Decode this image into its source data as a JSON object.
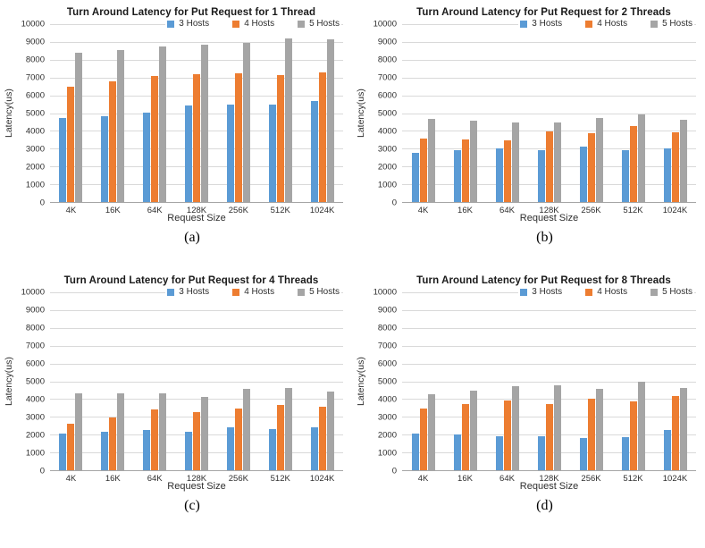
{
  "colors": {
    "series_blue": "#5B9BD5",
    "series_orange": "#ED7D31",
    "series_gray": "#A5A5A5",
    "gridline": "#D9D9D9",
    "axis_line": "#A6A6A6",
    "text": "#2E2E2E",
    "title_text": "#1A1A1A",
    "background": "#FFFFFF"
  },
  "axis": {
    "y_ticks": [
      10000,
      9000,
      8000,
      7000,
      6000,
      5000,
      4000,
      3000,
      2000,
      1000,
      0
    ],
    "y_max": 10000
  },
  "legend_labels": [
    "3 Hosts",
    "4 Hosts",
    "5 Hosts"
  ],
  "chart_data": [
    {
      "type": "bar",
      "title": "Turn Around Latency for Put Request for 1 Thread",
      "caption": "(a)",
      "xlabel": "Request Size",
      "ylabel": "Latency(us)",
      "ylim": [
        0,
        10000
      ],
      "grid": true,
      "legend_position": "top-right-inside",
      "categories": [
        "4K",
        "16K",
        "64K",
        "128K",
        "256K",
        "512K",
        "1024K"
      ],
      "series": [
        {
          "name": "3 Hosts",
          "color": "#5B9BD5",
          "values": [
            4700,
            4850,
            5050,
            5450,
            5500,
            5500,
            5700
          ]
        },
        {
          "name": "4 Hosts",
          "color": "#ED7D31",
          "values": [
            6500,
            6800,
            7100,
            7200,
            7250,
            7150,
            7300
          ]
        },
        {
          "name": "5 Hosts",
          "color": "#A5A5A5",
          "values": [
            8400,
            8550,
            8750,
            8850,
            8950,
            9200,
            9150
          ]
        }
      ]
    },
    {
      "type": "bar",
      "title": "Turn Around Latency for Put Request for 2 Threads",
      "caption": "(b)",
      "xlabel": "Request Size",
      "ylabel": "Latency(us)",
      "ylim": [
        0,
        10000
      ],
      "grid": true,
      "legend_position": "top-right-inside",
      "categories": [
        "4K",
        "16K",
        "64K",
        "128K",
        "256K",
        "512K",
        "1024K"
      ],
      "series": [
        {
          "name": "3 Hosts",
          "color": "#5B9BD5",
          "values": [
            2750,
            2900,
            3000,
            2900,
            3100,
            2900,
            3000
          ]
        },
        {
          "name": "4 Hosts",
          "color": "#ED7D31",
          "values": [
            3550,
            3500,
            3480,
            3950,
            3880,
            4250,
            3900
          ]
        },
        {
          "name": "5 Hosts",
          "color": "#A5A5A5",
          "values": [
            4650,
            4550,
            4450,
            4470,
            4700,
            4950,
            4620
          ]
        }
      ]
    },
    {
      "type": "bar",
      "title": "Turn Around Latency for Put Request for 4 Threads",
      "caption": "(c)",
      "xlabel": "Request Size",
      "ylabel": "Latency(us)",
      "ylim": [
        0,
        10000
      ],
      "grid": true,
      "legend_position": "top-right-inside",
      "categories": [
        "4K",
        "16K",
        "64K",
        "128K",
        "256K",
        "512K",
        "1024K"
      ],
      "series": [
        {
          "name": "3 Hosts",
          "color": "#5B9BD5",
          "values": [
            2080,
            2170,
            2270,
            2170,
            2420,
            2320,
            2430
          ]
        },
        {
          "name": "4 Hosts",
          "color": "#ED7D31",
          "values": [
            2600,
            2980,
            3400,
            3250,
            3480,
            3650,
            3550
          ]
        },
        {
          "name": "5 Hosts",
          "color": "#A5A5A5",
          "values": [
            4300,
            4320,
            4320,
            4120,
            4570,
            4600,
            4430
          ]
        }
      ]
    },
    {
      "type": "bar",
      "title": "Turn Around Latency for Put Request for 8 Threads",
      "caption": "(d)",
      "xlabel": "Request Size",
      "ylabel": "Latency(us)",
      "ylim": [
        0,
        10000
      ],
      "grid": true,
      "legend_position": "top-right-inside",
      "categories": [
        "4K",
        "16K",
        "64K",
        "128K",
        "256K",
        "512K",
        "1024K"
      ],
      "series": [
        {
          "name": "3 Hosts",
          "color": "#5B9BD5",
          "values": [
            2050,
            2030,
            1900,
            1900,
            1830,
            1850,
            2270
          ]
        },
        {
          "name": "4 Hosts",
          "color": "#ED7D31",
          "values": [
            3480,
            3700,
            3930,
            3700,
            4020,
            3880,
            4180
          ]
        },
        {
          "name": "5 Hosts",
          "color": "#A5A5A5",
          "values": [
            4280,
            4470,
            4700,
            4750,
            4550,
            4980,
            4620
          ]
        }
      ]
    }
  ]
}
